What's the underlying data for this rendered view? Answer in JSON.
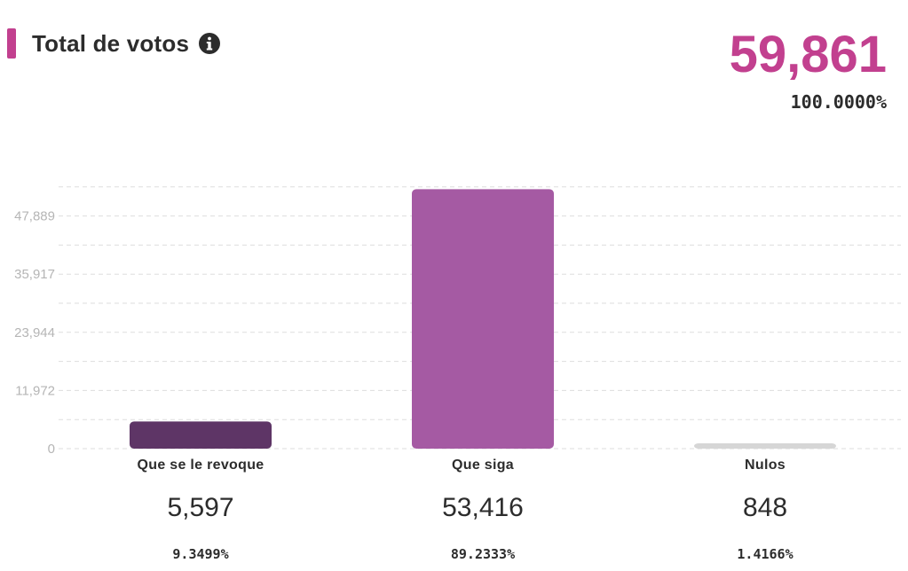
{
  "header": {
    "title": "Total de votos",
    "info_icon": "info-circle-icon",
    "total_count": "59,861",
    "total_percent": "100.0000%"
  },
  "colors": {
    "accent": "#c2408f",
    "text": "#2c2c2c",
    "grid": "#dddddd",
    "tick_text": "#b5b5b5"
  },
  "chart_data": {
    "type": "bar",
    "categories": [
      "Que se le revoque",
      "Que siga",
      "Nulos"
    ],
    "values": [
      5597,
      53416,
      848
    ],
    "colors": [
      "#5e3566",
      "#a55aa3",
      "#d6d6d6"
    ],
    "y_ticks": [
      "0",
      "11,972",
      "23,944",
      "35,917",
      "47,889"
    ],
    "ylim": [
      0,
      59861
    ],
    "grid": true,
    "counts": [
      "5,597",
      "53,416",
      "848"
    ],
    "percents": [
      "9.3499%",
      "89.2333%",
      "1.4166%"
    ]
  }
}
